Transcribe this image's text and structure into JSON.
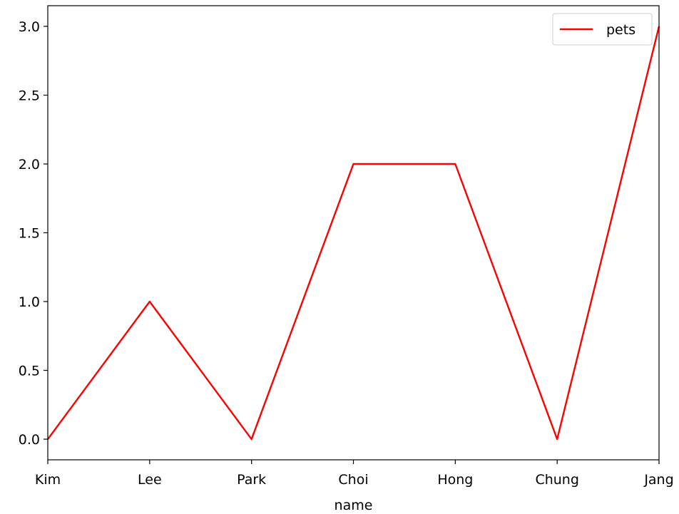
{
  "chart_data": {
    "type": "line",
    "categories": [
      "Kim",
      "Lee",
      "Park",
      "Choi",
      "Hong",
      "Chung",
      "Jang"
    ],
    "series": [
      {
        "name": "pets",
        "values": [
          0,
          1,
          0,
          2,
          2,
          0,
          3
        ],
        "color": "#ff0000"
      }
    ],
    "xlabel": "name",
    "ylabel": "",
    "ylim": [
      -0.15,
      3.15
    ],
    "yticks": [
      "0.0",
      "0.5",
      "1.0",
      "1.5",
      "2.0",
      "2.5",
      "3.0"
    ],
    "grid": false,
    "legend_position": "top-right"
  }
}
